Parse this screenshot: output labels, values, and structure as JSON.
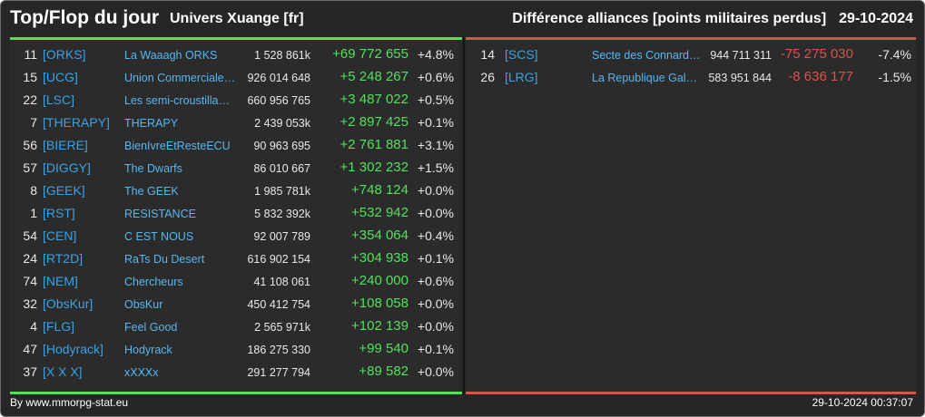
{
  "header": {
    "title": "Top/Flop du jour",
    "universe": "Univers Xuange [fr]",
    "description": "Différence alliances [points militaires perdus]",
    "date": "29-10-2024"
  },
  "top": [
    {
      "rank": "11",
      "tag": "[ORKS]",
      "name": "La Waaagh ORKS",
      "points": "1 528 861k",
      "diff": "+69 772 655",
      "pct": "+4.8%"
    },
    {
      "rank": "15",
      "tag": "[UCG]",
      "name": "Union Commerciale…",
      "points": "926 014 648",
      "diff": "+5 248 267",
      "pct": "+0.6%"
    },
    {
      "rank": "22",
      "tag": "[LSC]",
      "name": "Les semi-croustilla…",
      "points": "660 956 765",
      "diff": "+3 487 022",
      "pct": "+0.5%"
    },
    {
      "rank": "7",
      "tag": "[THERAPY]",
      "name": "THERAPY",
      "points": "2 439 053k",
      "diff": "+2 897 425",
      "pct": "+0.1%"
    },
    {
      "rank": "56",
      "tag": "[BIERE]",
      "name": "BienIvreEtResteECU",
      "points": "90 963 695",
      "diff": "+2 761 881",
      "pct": "+3.1%"
    },
    {
      "rank": "57",
      "tag": "[DIGGY]",
      "name": "The Dwarfs",
      "points": "86 010 667",
      "diff": "+1 302 232",
      "pct": "+1.5%"
    },
    {
      "rank": "8",
      "tag": "[GEEK]",
      "name": "The GEEK",
      "points": "1 985 781k",
      "diff": "+748 124",
      "pct": "+0.0%"
    },
    {
      "rank": "1",
      "tag": "[RST]",
      "name": "RESISTANCE",
      "points": "5 832 392k",
      "diff": "+532 942",
      "pct": "+0.0%"
    },
    {
      "rank": "54",
      "tag": "[CEN]",
      "name": "C EST NOUS",
      "points": "92 007 789",
      "diff": "+354 064",
      "pct": "+0.4%"
    },
    {
      "rank": "24",
      "tag": "[RT2D]",
      "name": "RaTs Du Desert",
      "points": "616 902 154",
      "diff": "+304 938",
      "pct": "+0.1%"
    },
    {
      "rank": "74",
      "tag": "[NEM]",
      "name": "Chercheurs",
      "points": "41 108 061",
      "diff": "+240 000",
      "pct": "+0.6%"
    },
    {
      "rank": "32",
      "tag": "[ObsKur]",
      "name": "ObsKur",
      "points": "450 412 754",
      "diff": "+108 058",
      "pct": "+0.0%"
    },
    {
      "rank": "4",
      "tag": "[FLG]",
      "name": "Feel Good",
      "points": "2 565 971k",
      "diff": "+102 139",
      "pct": "+0.0%"
    },
    {
      "rank": "47",
      "tag": "[Hodyrack]",
      "name": "Hodyrack",
      "points": "186 275 330",
      "diff": "+99 540",
      "pct": "+0.1%"
    },
    {
      "rank": "37",
      "tag": "[X X X]",
      "name": "xXXXx",
      "points": "291 277 794",
      "diff": "+89 582",
      "pct": "+0.0%"
    }
  ],
  "flop": [
    {
      "rank": "14",
      "tag": "[SCS]",
      "name": "Secte des Connard…",
      "points": "944 711 311",
      "diff": "-75 275 030",
      "pct": "-7.4%"
    },
    {
      "rank": "26",
      "tag": "[LRG]",
      "name": "La Republique Gala…",
      "points": "583 951 844",
      "diff": "-8 636 177",
      "pct": "-1.5%"
    }
  ],
  "footer": {
    "source": "By www.mmorpg-stat.eu",
    "timestamp": "29-10-2024 00:37:07"
  },
  "colors": {
    "positive": "#4ee35a",
    "negative": "#e0504a",
    "tag": "#3aa2e6",
    "background": "#262626"
  }
}
